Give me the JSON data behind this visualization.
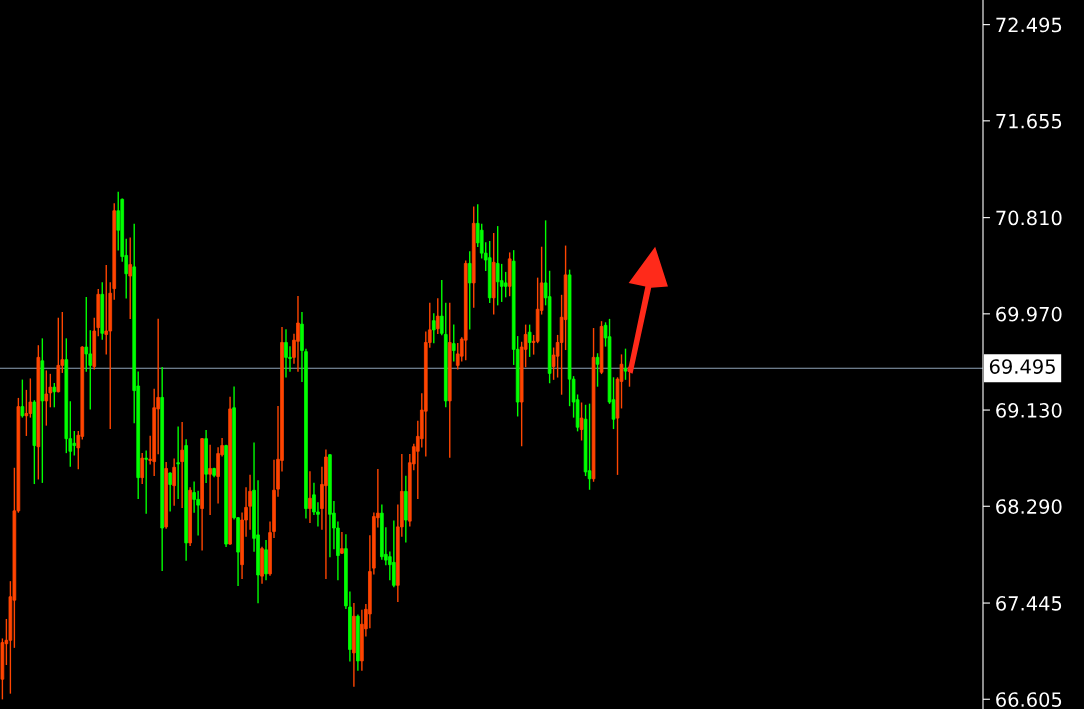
{
  "chart_data": {
    "type": "candlestick",
    "categories": [
      null,
      null,
      null,
      null,
      null,
      null,
      null,
      null,
      null,
      null,
      null,
      null,
      null,
      null,
      null,
      null,
      null,
      null,
      null,
      null,
      null,
      null,
      null,
      null,
      null,
      null,
      null,
      null,
      null,
      null,
      null,
      null,
      null,
      null,
      null,
      null,
      null,
      null,
      null,
      null,
      null,
      null,
      null,
      null,
      null,
      null,
      null,
      null,
      null,
      null,
      null,
      null,
      null,
      null,
      null,
      null,
      null,
      null,
      null,
      null,
      null,
      null,
      null,
      null,
      null,
      null,
      null,
      null,
      null,
      null,
      null,
      null,
      null,
      null,
      null,
      null,
      null,
      null,
      null,
      null,
      null,
      null,
      null,
      null,
      null,
      null,
      null,
      null,
      null,
      null,
      null,
      null,
      null,
      null,
      null,
      null,
      null,
      null,
      null,
      null,
      null,
      null,
      null,
      null,
      null,
      null,
      null,
      null,
      null,
      null,
      null,
      null,
      null,
      null,
      null,
      null,
      null,
      null,
      null,
      null,
      null,
      null,
      null,
      null,
      null,
      null,
      null,
      null,
      null,
      null,
      null,
      null,
      null,
      null,
      null,
      null,
      null,
      null,
      null,
      null,
      null,
      null,
      null,
      null,
      null,
      null,
      null,
      null,
      null,
      null,
      null,
      null,
      null,
      null,
      null,
      null,
      null,
      null,
      null,
      null,
      null,
      null,
      null,
      null,
      null,
      null,
      null,
      null,
      null,
      null,
      null,
      null,
      null,
      null,
      null,
      null,
      null,
      null,
      null,
      null,
      null,
      null,
      null,
      null,
      null,
      null,
      null,
      null,
      null,
      null,
      null,
      null,
      null,
      null,
      null,
      null,
      null,
      null,
      null,
      null,
      null,
      null,
      null,
      null,
      null,
      null,
      null,
      null,
      null,
      null,
      null,
      null,
      null,
      null,
      null,
      null,
      null,
      null,
      null,
      null,
      null,
      null,
      null,
      null,
      null,
      null,
      null,
      null,
      null,
      null,
      null,
      null,
      null,
      null,
      null,
      null,
      null,
      null,
      null,
      null,
      null,
      null,
      null,
      null,
      null,
      null
    ],
    "ohlc": [
      [
        66.78,
        67.13,
        66.61,
        67.1
      ],
      [
        67.09,
        67.3,
        66.91,
        67.12
      ],
      [
        67.12,
        67.63,
        66.66,
        67.5
      ],
      [
        67.47,
        68.62,
        67.06,
        68.25
      ],
      [
        68.25,
        69.23,
        68.24,
        69.16
      ],
      [
        69.16,
        69.39,
        69.07,
        69.08
      ],
      [
        69.08,
        69.3,
        68.91,
        69.1
      ],
      [
        69.1,
        69.4,
        69.07,
        69.2
      ],
      [
        69.2,
        69.21,
        68.49,
        68.82
      ],
      [
        68.81,
        69.69,
        68.53,
        69.59
      ],
      [
        69.56,
        69.75,
        68.5,
        69.21
      ],
      [
        69.21,
        69.47,
        69.0,
        69.27
      ],
      [
        69.28,
        69.44,
        69.16,
        69.33
      ],
      [
        69.33,
        69.36,
        69.16,
        69.29
      ],
      [
        69.29,
        69.93,
        69.29,
        69.52
      ],
      [
        69.52,
        69.98,
        69.46,
        69.57
      ],
      [
        69.57,
        69.75,
        68.76,
        68.88
      ],
      [
        68.88,
        69.2,
        68.64,
        68.77
      ],
      [
        68.84,
        68.94,
        68.74,
        68.82
      ],
      [
        68.8,
        68.94,
        68.62,
        68.91
      ],
      [
        68.9,
        69.68,
        68.88,
        69.68
      ],
      [
        69.68,
        70.11,
        69.47,
        69.62
      ],
      [
        69.62,
        69.82,
        69.14,
        69.52
      ],
      [
        69.51,
        69.93,
        69.49,
        69.82
      ],
      [
        69.85,
        70.18,
        69.78,
        70.14
      ],
      [
        70.14,
        70.24,
        69.75,
        69.8
      ],
      [
        69.79,
        70.39,
        69.62,
        69.82
      ],
      [
        69.82,
        70.24,
        68.97,
        70.15
      ],
      [
        70.19,
        70.93,
        70.1,
        70.87
      ],
      [
        70.87,
        71.03,
        70.53,
        70.7
      ],
      [
        70.97,
        70.97,
        70.43,
        70.47
      ],
      [
        70.48,
        70.62,
        70.11,
        70.32
      ],
      [
        70.3,
        70.63,
        69.93,
        70.4
      ],
      [
        70.38,
        70.75,
        69.02,
        69.3
      ],
      [
        69.34,
        69.46,
        68.36,
        68.54
      ],
      [
        68.54,
        68.75,
        68.49,
        68.71
      ],
      [
        68.71,
        68.77,
        68.23,
        68.7
      ],
      [
        68.69,
        68.9,
        68.66,
        68.7
      ],
      [
        68.68,
        69.31,
        68.56,
        69.15
      ],
      [
        69.14,
        69.92,
        68.75,
        69.24
      ],
      [
        69.24,
        69.5,
        67.73,
        68.1
      ],
      [
        68.11,
        68.67,
        68.1,
        68.62
      ],
      [
        68.58,
        68.58,
        68.25,
        68.48
      ],
      [
        68.47,
        68.7,
        68.3,
        68.63
      ],
      [
        68.67,
        68.98,
        68.36,
        68.66
      ],
      [
        68.68,
        69.02,
        68.28,
        68.78
      ],
      [
        68.82,
        68.87,
        67.82,
        67.97
      ],
      [
        67.97,
        68.45,
        67.95,
        68.43
      ],
      [
        68.41,
        68.5,
        68.24,
        68.35
      ],
      [
        68.35,
        68.42,
        68.04,
        68.3
      ],
      [
        68.27,
        68.88,
        67.91,
        68.88
      ],
      [
        68.88,
        68.95,
        68.5,
        68.57
      ],
      [
        68.57,
        68.82,
        68.22,
        68.62
      ],
      [
        68.62,
        68.62,
        68.55,
        68.56
      ],
      [
        68.55,
        68.8,
        68.32,
        68.75
      ],
      [
        68.74,
        68.88,
        68.73,
        68.82
      ],
      [
        68.82,
        68.82,
        67.94,
        67.96
      ],
      [
        67.96,
        69.24,
        67.96,
        69.14
      ],
      [
        69.15,
        69.33,
        68.18,
        68.19
      ],
      [
        68.19,
        68.19,
        67.6,
        67.89
      ],
      [
        67.78,
        68.23,
        67.66,
        68.17
      ],
      [
        68.17,
        68.45,
        68.03,
        68.28
      ],
      [
        68.29,
        68.56,
        68.09,
        68.42
      ],
      [
        68.43,
        68.84,
        67.9,
        68.01
      ],
      [
        68.04,
        68.51,
        67.45,
        67.69
      ],
      [
        67.68,
        67.93,
        67.62,
        67.92
      ],
      [
        67.91,
        67.99,
        67.65,
        67.7
      ],
      [
        67.7,
        68.15,
        67.69,
        68.06
      ],
      [
        68.07,
        68.69,
        68.02,
        68.43
      ],
      [
        68.44,
        69.16,
        68.38,
        68.7
      ],
      [
        68.69,
        69.85,
        68.6,
        69.72
      ],
      [
        69.72,
        69.83,
        69.42,
        69.59
      ],
      [
        69.59,
        69.68,
        69.47,
        69.58
      ],
      [
        69.59,
        69.79,
        69.54,
        69.74
      ],
      [
        69.73,
        70.12,
        69.47,
        69.89
      ],
      [
        69.88,
        69.98,
        69.38,
        69.65
      ],
      [
        69.64,
        69.66,
        68.19,
        68.27
      ],
      [
        68.27,
        68.59,
        68.15,
        68.36
      ],
      [
        68.39,
        68.49,
        68.22,
        68.24
      ],
      [
        68.24,
        68.32,
        68.12,
        68.22
      ],
      [
        68.27,
        68.63,
        68.09,
        68.48
      ],
      [
        68.47,
        68.78,
        67.66,
        68.72
      ],
      [
        68.74,
        68.74,
        67.85,
        68.22
      ],
      [
        68.23,
        68.33,
        67.92,
        68.1
      ],
      [
        68.1,
        68.15,
        67.65,
        67.86
      ],
      [
        67.88,
        68.06,
        67.88,
        67.92
      ],
      [
        67.92,
        68.04,
        67.4,
        67.42
      ],
      [
        67.41,
        67.54,
        66.94,
        67.04
      ],
      [
        67.01,
        67.44,
        66.72,
        67.33
      ],
      [
        67.33,
        67.34,
        66.86,
        66.94
      ],
      [
        66.94,
        67.38,
        66.86,
        67.26
      ],
      [
        67.22,
        67.43,
        67.16,
        67.39
      ],
      [
        67.35,
        68.03,
        67.23,
        67.72
      ],
      [
        67.75,
        68.23,
        67.7,
        68.2
      ],
      [
        68.19,
        68.61,
        68.11,
        68.23
      ],
      [
        68.23,
        68.3,
        67.83,
        67.85
      ],
      [
        67.87,
        68.1,
        67.78,
        67.82
      ],
      [
        67.85,
        67.89,
        67.65,
        67.78
      ],
      [
        67.8,
        68.16,
        67.59,
        67.6
      ],
      [
        67.6,
        68.3,
        67.46,
        68.11
      ],
      [
        68.11,
        68.74,
        68.03,
        68.42
      ],
      [
        68.42,
        68.55,
        67.98,
        68.17
      ],
      [
        68.16,
        68.74,
        68.12,
        68.67
      ],
      [
        68.66,
        68.83,
        68.61,
        68.81
      ],
      [
        68.77,
        69.03,
        68.36,
        68.9
      ],
      [
        68.88,
        69.27,
        68.81,
        69.13
      ],
      [
        69.12,
        69.81,
        68.73,
        69.72
      ],
      [
        69.72,
        70.06,
        69.68,
        69.83
      ],
      [
        69.91,
        69.97,
        69.72,
        69.83
      ],
      [
        69.84,
        70.1,
        69.8,
        69.95
      ],
      [
        69.95,
        70.26,
        69.79,
        69.8
      ],
      [
        69.79,
        70.06,
        69.16,
        69.21
      ],
      [
        69.21,
        70.06,
        68.72,
        69.72
      ],
      [
        69.71,
        69.87,
        69.56,
        69.65
      ],
      [
        69.52,
        69.71,
        69.49,
        69.62
      ],
      [
        69.6,
        69.76,
        69.56,
        69.75
      ],
      [
        69.74,
        70.43,
        69.57,
        70.41
      ],
      [
        70.41,
        70.51,
        69.84,
        70.24
      ],
      [
        70.24,
        70.9,
        70.03,
        70.76
      ],
      [
        70.76,
        70.92,
        70.56,
        70.59
      ],
      [
        70.7,
        70.75,
        70.46,
        70.5
      ],
      [
        70.5,
        70.59,
        70.35,
        70.44
      ],
      [
        70.46,
        70.6,
        70.07,
        70.11
      ],
      [
        70.11,
        70.67,
        69.97,
        70.42
      ],
      [
        70.41,
        70.73,
        70.05,
        70.25
      ],
      [
        70.26,
        70.4,
        70.08,
        70.21
      ],
      [
        70.24,
        70.33,
        70.12,
        70.21
      ],
      [
        70.21,
        70.5,
        70.13,
        70.45
      ],
      [
        70.43,
        70.52,
        69.53,
        69.66
      ],
      [
        69.66,
        69.77,
        69.08,
        69.2
      ],
      [
        69.2,
        69.72,
        68.82,
        69.68
      ],
      [
        69.66,
        69.87,
        69.51,
        69.79
      ],
      [
        69.81,
        69.87,
        69.6,
        69.72
      ],
      [
        69.72,
        69.78,
        69.62,
        69.73
      ],
      [
        69.73,
        70.28,
        69.72,
        70.01
      ],
      [
        70.0,
        70.55,
        69.97,
        70.24
      ],
      [
        70.24,
        70.78,
        70.05,
        70.11
      ],
      [
        70.12,
        70.34,
        69.37,
        69.45
      ],
      [
        69.51,
        69.67,
        69.4,
        69.61
      ],
      [
        69.6,
        69.78,
        69.42,
        69.72
      ],
      [
        69.72,
        70.13,
        69.27,
        69.94
      ],
      [
        69.92,
        70.56,
        69.66,
        70.31
      ],
      [
        70.31,
        70.35,
        69.17,
        69.4
      ],
      [
        69.4,
        69.42,
        69.07,
        69.2
      ],
      [
        69.22,
        69.26,
        68.95,
        68.98
      ],
      [
        68.96,
        69.19,
        68.87,
        69.06
      ],
      [
        69.05,
        69.17,
        68.56,
        68.59
      ],
      [
        68.6,
        69.18,
        68.44,
        68.53
      ],
      [
        68.53,
        69.84,
        68.51,
        69.59
      ],
      [
        69.59,
        69.62,
        69.34,
        69.53
      ],
      [
        69.46,
        69.9,
        69.45,
        69.86
      ],
      [
        69.87,
        69.89,
        69.69,
        69.76
      ],
      [
        69.77,
        69.92,
        69.19,
        69.2
      ],
      [
        69.22,
        69.41,
        68.97,
        69.05
      ],
      [
        69.06,
        69.41,
        68.57,
        69.4
      ],
      [
        69.38,
        69.61,
        69.15,
        69.53
      ],
      [
        69.49,
        69.66,
        69.4,
        69.47
      ],
      [
        69.47,
        69.51,
        69.34,
        69.5
      ],
      null,
      null,
      null,
      null,
      null,
      null,
      null,
      null,
      null,
      null,
      null,
      null,
      null,
      null,
      null,
      null,
      null,
      null,
      null,
      null,
      null,
      null,
      null,
      null,
      null,
      null,
      null,
      null,
      null,
      null,
      null,
      null,
      null,
      null,
      null,
      null,
      null,
      null,
      null,
      null,
      null,
      null,
      null,
      null,
      null,
      null,
      null,
      null,
      null,
      null,
      null,
      null,
      null,
      null,
      null,
      null,
      null,
      null,
      null,
      null,
      null,
      null,
      null,
      null,
      null,
      null,
      null,
      null,
      null,
      null,
      null,
      null,
      null,
      null,
      null,
      null,
      null,
      null,
      null,
      null,
      null,
      null,
      null,
      null,
      null,
      null,
      null,
      null
    ],
    "colors": [
      "#ff4500",
      "#ff4500",
      "#ff4500",
      "#ff4500",
      "#ff4500",
      "#00ff00",
      "#ff4500",
      "#ff4500",
      "#00ff00",
      "#ff4500",
      "#00ff00",
      "#ff4500",
      "#ff4500",
      "#00ff00",
      "#ff4500",
      "#ff4500",
      "#00ff00",
      "#00ff00",
      "#00ff00",
      "#ff4500",
      "#ff4500",
      "#00ff00",
      "#00ff00",
      "#ff4500",
      "#ff4500",
      "#00ff00",
      "#ff4500",
      "#ff4500",
      "#ff4500",
      "#00ff00",
      "#00ff00",
      "#00ff00",
      "#ff4500",
      "#00ff00",
      "#00ff00",
      "#ff4500",
      "#00ff00",
      "#ff4500",
      "#ff4500",
      "#ff4500",
      "#00ff00",
      "#ff4500",
      "#00ff00",
      "#ff4500",
      "#00ff00",
      "#ff4500",
      "#00ff00",
      "#ff4500",
      "#00ff00",
      "#00ff00",
      "#ff4500",
      "#00ff00",
      "#ff4500",
      "#00ff00",
      "#ff4500",
      "#ff4500",
      "#00ff00",
      "#ff4500",
      "#00ff00",
      "#00ff00",
      "#ff4500",
      "#ff4500",
      "#ff4500",
      "#00ff00",
      "#00ff00",
      "#ff4500",
      "#00ff00",
      "#ff4500",
      "#ff4500",
      "#ff4500",
      "#ff4500",
      "#00ff00",
      "#00ff00",
      "#ff4500",
      "#ff4500",
      "#00ff00",
      "#00ff00",
      "#ff4500",
      "#00ff00",
      "#00ff00",
      "#ff4500",
      "#ff4500",
      "#00ff00",
      "#00ff00",
      "#00ff00",
      "#ff4500",
      "#00ff00",
      "#00ff00",
      "#ff4500",
      "#00ff00",
      "#ff4500",
      "#ff4500",
      "#ff4500",
      "#ff4500",
      "#ff4500",
      "#00ff00",
      "#00ff00",
      "#00ff00",
      "#00ff00",
      "#ff4500",
      "#ff4500",
      "#00ff00",
      "#ff4500",
      "#ff4500",
      "#ff4500",
      "#ff4500",
      "#ff4500",
      "#ff4500",
      "#00ff00",
      "#ff4500",
      "#00ff00",
      "#00ff00",
      "#ff4500",
      "#00ff00",
      "#ff4500",
      "#ff4500",
      "#ff4500",
      "#00ff00",
      "#ff4500",
      "#00ff00",
      "#00ff00",
      "#00ff00",
      "#00ff00",
      "#ff4500",
      "#00ff00",
      "#00ff00",
      "#00ff00",
      "#ff4500",
      "#00ff00",
      "#00ff00",
      "#ff4500",
      "#ff4500",
      "#00ff00",
      "#ff4500",
      "#ff4500",
      "#ff4500",
      "#00ff00",
      "#00ff00",
      "#ff4500",
      "#ff4500",
      "#ff4500",
      "#ff4500",
      "#00ff00",
      "#00ff00",
      "#00ff00",
      "#ff4500",
      "#00ff00",
      "#00ff00",
      "#ff4500",
      "#00ff00",
      "#ff4500",
      "#00ff00",
      "#00ff00",
      "#00ff00",
      "#ff4500",
      "#ff4500",
      "#00ff00",
      "#ff4500",
      null,
      null,
      null,
      null,
      null,
      null,
      null,
      null,
      null,
      null,
      null,
      null,
      null,
      null,
      null,
      null,
      null,
      null,
      null,
      null,
      null,
      null,
      null,
      null,
      null,
      null,
      null,
      null,
      null,
      null,
      null,
      null,
      null,
      null,
      null,
      null,
      null,
      null,
      null,
      null,
      null,
      null,
      null,
      null,
      null,
      null,
      null,
      null,
      null,
      null,
      null,
      null,
      null,
      null,
      null,
      null,
      null,
      null,
      null,
      null,
      null,
      null,
      null,
      null,
      null,
      null,
      null,
      null,
      null,
      null,
      null,
      null,
      null,
      null,
      null,
      null,
      null,
      null,
      null,
      null,
      null,
      null,
      null,
      null,
      null,
      null,
      null,
      null
    ],
    "ylim": [
      66.52,
      72.71
    ],
    "yticks": [
      {
        "value": 66.605,
        "label": "66.605"
      },
      {
        "value": 67.445,
        "label": "67.445"
      },
      {
        "value": 68.29,
        "label": "68.290"
      },
      {
        "value": 69.13,
        "label": "69.130"
      },
      {
        "value": 69.97,
        "label": "69.970"
      },
      {
        "value": 70.81,
        "label": "70.810"
      },
      {
        "value": 71.655,
        "label": "71.655"
      },
      {
        "value": 72.495,
        "label": "72.495"
      }
    ],
    "ref_lines": [
      {
        "axis": "y",
        "value": 69.495,
        "label": "69.495",
        "color": "#8fa3b8"
      }
    ],
    "grid": false
  }
}
